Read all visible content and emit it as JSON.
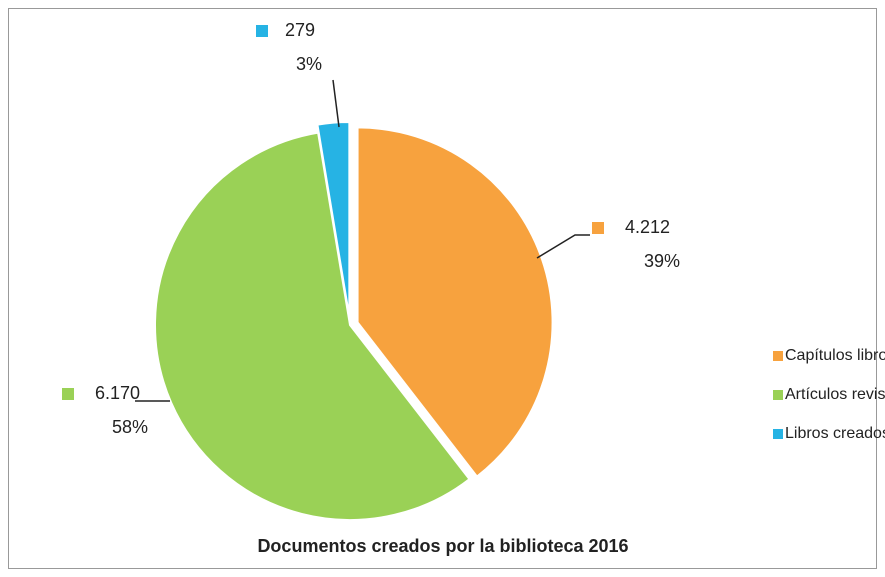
{
  "chart_data": {
    "type": "pie",
    "title": "Documentos creados por la biblioteca 2016",
    "categories": [
      "Capítulos libros",
      "Artículos revistas",
      "Libros creados"
    ],
    "values": [
      4212,
      6170,
      279
    ],
    "value_labels": [
      "4.212",
      "6.170",
      "279"
    ],
    "percents": [
      39,
      58,
      3
    ],
    "percent_labels": [
      "39%",
      "58%",
      "3%"
    ],
    "colors": [
      "#f7a23e",
      "#9ad156",
      "#26b3e4"
    ],
    "legend": "right"
  }
}
